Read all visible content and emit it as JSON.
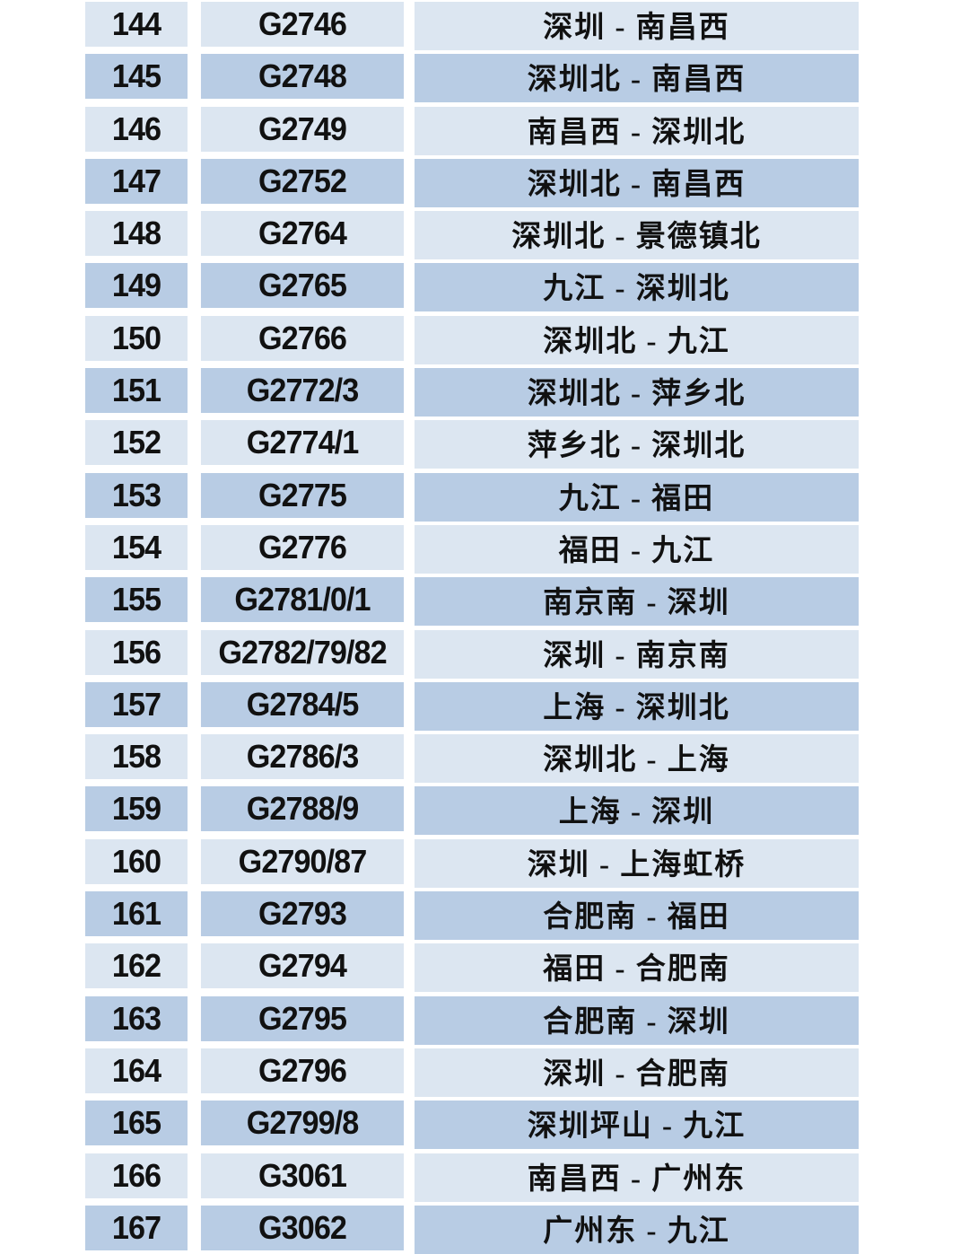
{
  "colors": {
    "row_light": "#DCE6F1",
    "row_dark": "#B8CCE4",
    "text": "#111111",
    "background": "#FFFFFF"
  },
  "table": {
    "rows": [
      {
        "no": "144",
        "train": "G2746",
        "route": "深圳 - 南昌西"
      },
      {
        "no": "145",
        "train": "G2748",
        "route": "深圳北 - 南昌西"
      },
      {
        "no": "146",
        "train": "G2749",
        "route": "南昌西 - 深圳北"
      },
      {
        "no": "147",
        "train": "G2752",
        "route": "深圳北 - 南昌西"
      },
      {
        "no": "148",
        "train": "G2764",
        "route": "深圳北 - 景德镇北"
      },
      {
        "no": "149",
        "train": "G2765",
        "route": "九江 - 深圳北"
      },
      {
        "no": "150",
        "train": "G2766",
        "route": "深圳北 - 九江"
      },
      {
        "no": "151",
        "train": "G2772/3",
        "route": "深圳北 - 萍乡北"
      },
      {
        "no": "152",
        "train": "G2774/1",
        "route": "萍乡北 - 深圳北"
      },
      {
        "no": "153",
        "train": "G2775",
        "route": "九江 - 福田"
      },
      {
        "no": "154",
        "train": "G2776",
        "route": "福田 - 九江"
      },
      {
        "no": "155",
        "train": "G2781/0/1",
        "route": "南京南 - 深圳"
      },
      {
        "no": "156",
        "train": "G2782/79/82",
        "route": "深圳 - 南京南"
      },
      {
        "no": "157",
        "train": "G2784/5",
        "route": "上海 - 深圳北"
      },
      {
        "no": "158",
        "train": "G2786/3",
        "route": "深圳北 - 上海"
      },
      {
        "no": "159",
        "train": "G2788/9",
        "route": "上海 - 深圳"
      },
      {
        "no": "160",
        "train": "G2790/87",
        "route": "深圳 - 上海虹桥"
      },
      {
        "no": "161",
        "train": "G2793",
        "route": "合肥南 - 福田"
      },
      {
        "no": "162",
        "train": "G2794",
        "route": "福田 - 合肥南"
      },
      {
        "no": "163",
        "train": "G2795",
        "route": "合肥南 - 深圳"
      },
      {
        "no": "164",
        "train": "G2796",
        "route": "深圳 - 合肥南"
      },
      {
        "no": "165",
        "train": "G2799/8",
        "route": "深圳坪山 - 九江"
      },
      {
        "no": "166",
        "train": "G3061",
        "route": "南昌西 - 广州东"
      },
      {
        "no": "167",
        "train": "G3062",
        "route": "广州东 - 九江"
      }
    ]
  }
}
